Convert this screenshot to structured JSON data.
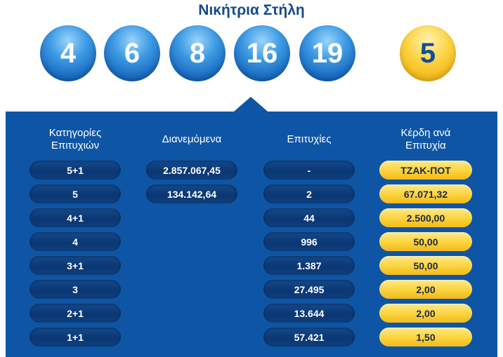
{
  "title": "Νικήτρια Στήλη",
  "numbers": [
    "4",
    "6",
    "8",
    "16",
    "19"
  ],
  "joker": "5",
  "headers": {
    "category": [
      "Κατηγορίες",
      "Επιτυχιών"
    ],
    "distributed": "Διανεμόμενα",
    "winners": "Επιτυχίες",
    "prize": [
      "Κέρδη ανά",
      "Επιτυχία"
    ]
  },
  "rows": [
    {
      "category": "5+1",
      "distributed": "2.857.067,45",
      "winners": "-",
      "prize": "ΤΖΑΚ-ΠΟΤ"
    },
    {
      "category": "5",
      "distributed": "134.142,64",
      "winners": "2",
      "prize": "67.071,32"
    },
    {
      "category": "4+1",
      "distributed": "",
      "winners": "44",
      "prize": "2.500,00"
    },
    {
      "category": "4",
      "distributed": "",
      "winners": "996",
      "prize": "50,00"
    },
    {
      "category": "3+1",
      "distributed": "",
      "winners": "1.387",
      "prize": "50,00"
    },
    {
      "category": "3",
      "distributed": "",
      "winners": "27.495",
      "prize": "2,00"
    },
    {
      "category": "2+1",
      "distributed": "",
      "winners": "13.644",
      "prize": "2,00"
    },
    {
      "category": "1+1",
      "distributed": "",
      "winners": "57.421",
      "prize": "1,50"
    }
  ],
  "colors": {
    "blue_panel": "#0f55a5",
    "title": "#164a8c",
    "gold": "#fbd33c",
    "ball_blue": "#1565bc"
  }
}
